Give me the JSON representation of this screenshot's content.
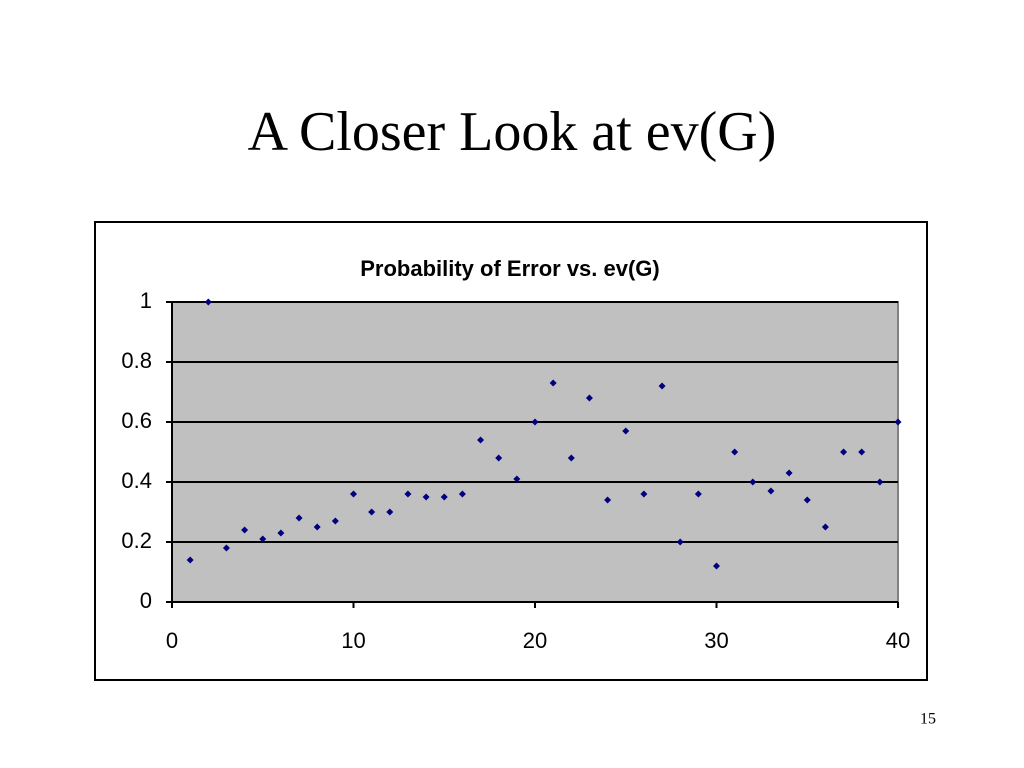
{
  "slide_title": "A Closer Look at ev(G)",
  "page_number": "15",
  "chart_data": {
    "type": "scatter",
    "title": "Probability of Error vs. ev(G)",
    "x": [
      1,
      2,
      3,
      4,
      5,
      6,
      7,
      8,
      9,
      10,
      11,
      12,
      13,
      14,
      15,
      16,
      17,
      18,
      19,
      20,
      21,
      22,
      23,
      24,
      25,
      26,
      27,
      28,
      29,
      30,
      31,
      32,
      33,
      34,
      35,
      36,
      37,
      38,
      39,
      40
    ],
    "values": [
      0.14,
      1,
      0.18,
      0.24,
      0.21,
      0.23,
      0.28,
      0.25,
      0.27,
      0.36,
      0.3,
      0.3,
      0.36,
      0.35,
      0.35,
      0.36,
      0.54,
      0.48,
      0.41,
      0.6,
      0.73,
      0.48,
      0.68,
      0.34,
      0.57,
      0.36,
      0.72,
      0.2,
      0.36,
      0.12,
      0.5,
      0.4,
      0.37,
      0.43,
      0.34,
      0.25,
      0.5,
      0.5,
      0.4,
      0.6
    ],
    "color": "#000080",
    "xlim": [
      0,
      40
    ],
    "xticks": [
      0,
      10,
      20,
      30,
      40
    ],
    "ylim": [
      0,
      1
    ],
    "yticks": [
      0,
      0.2,
      0.4,
      0.6,
      0.8,
      1
    ],
    "grid": true
  }
}
